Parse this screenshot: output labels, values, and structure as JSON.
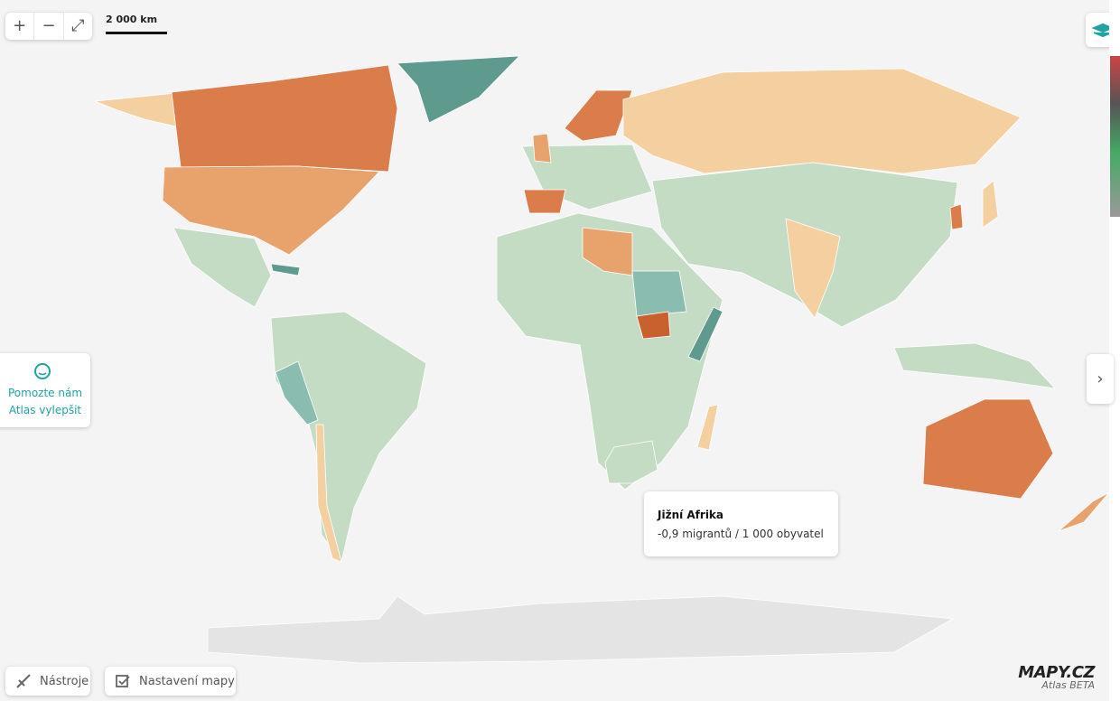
{
  "scale": "2 000 km",
  "feedback": {
    "lines": [
      "Pomozte nám",
      "Atlas vylepšit"
    ]
  },
  "tooltip": {
    "title": "Jižní Afrika",
    "text": "-0,9 migrantů / 1 000 obyvatel"
  },
  "toolbar": [
    "Nástroje",
    "Nastavení mapy"
  ],
  "logo": {
    "brand": "MAPY.CZ",
    "subtitle": "Atlas BETA"
  }
}
